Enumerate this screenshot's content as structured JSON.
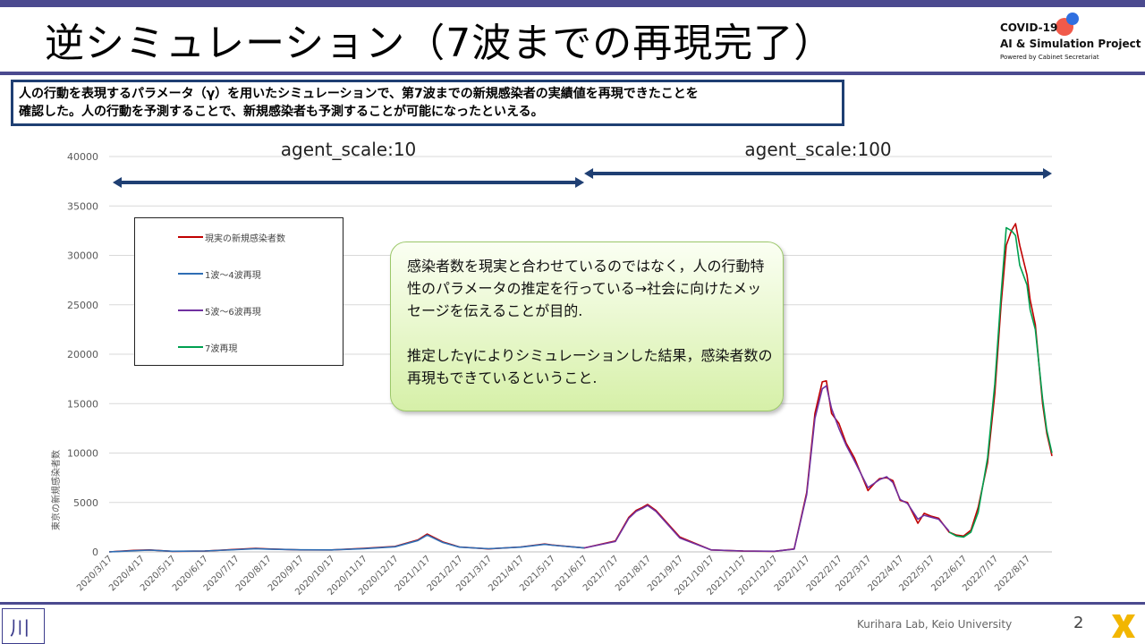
{
  "header": {
    "title": "逆シミュレーション（7波までの再現完了）",
    "logo": {
      "line1": "COVID-19",
      "line2": "AI & Simulation Project",
      "line3": "Powered by Cabinet Secretariat"
    }
  },
  "summary": {
    "line1": "人の行動を表現するパラメータ（γ）を用いたシミュレーションで、第7波までの新規感染者の実績値を再現できたことを",
    "line2": "確認した。人の行動を予測することで、新規感染者も予測することが可能になったといえる。"
  },
  "callout": {
    "p1": "感染者数を現実と合わせているのではなく，人の行動特性のパラメータの推定を行っている→社会に向けたメッセージを伝えることが目的.",
    "p2": "推定したγによりシミュレーションした結果，感染者数の再現もできているということ."
  },
  "footer": {
    "lab": "Kurihara Lab, Keio University",
    "page": "2",
    "logo_text": "川"
  },
  "colors": {
    "theme": "#4b4a8f",
    "box_border": "#1f3f73",
    "arrow": "#1f3f73",
    "callout_fill": "#e2f4c4"
  },
  "chart_data": {
    "type": "line",
    "ylabel": "東京の新規感染者数",
    "xlabel": "",
    "ylim": [
      0,
      40000
    ],
    "yticks": [
      0,
      5000,
      10000,
      15000,
      20000,
      25000,
      30000,
      35000,
      40000
    ],
    "xlim": [
      "2020-03-17",
      "2022-09-10"
    ],
    "xtick_labels": [
      "2020/3/17",
      "2020/4/17",
      "2020/5/17",
      "2020/6/17",
      "2020/7/17",
      "2020/8/17",
      "2020/9/17",
      "2020/10/17",
      "2020/11/17",
      "2020/12/17",
      "2021/1/17",
      "2021/2/17",
      "2021/3/17",
      "2021/4/17",
      "2021/5/17",
      "2021/6/17",
      "2021/7/17",
      "2021/8/17",
      "2021/9/17",
      "2021/10/17",
      "2021/11/17",
      "2021/12/17",
      "2022/1/17",
      "2022/2/17",
      "2022/3/17",
      "2022/4/17",
      "2022/5/17",
      "2022/6/17",
      "2022/7/17",
      "2022/8/17"
    ],
    "grid": "horizontal",
    "legend_position": "upper-left",
    "annotations": [
      {
        "text": "agent_scale:10",
        "from": "2020-03-17",
        "to": "2021-06-17"
      },
      {
        "text": "agent_scale:100",
        "from": "2021-06-17",
        "to": "2022-09-10"
      }
    ],
    "series": [
      {
        "name": "現実の新規感染者数",
        "color": "#c00000",
        "x": [
          "2020-03-17",
          "2020-04-10",
          "2020-04-25",
          "2020-05-17",
          "2020-06-17",
          "2020-07-17",
          "2020-08-05",
          "2020-08-17",
          "2020-09-17",
          "2020-10-17",
          "2020-11-17",
          "2020-12-17",
          "2021-01-08",
          "2021-01-17",
          "2021-02-01",
          "2021-02-17",
          "2021-03-17",
          "2021-04-17",
          "2021-05-10",
          "2021-05-17",
          "2021-06-17",
          "2021-07-17",
          "2021-07-30",
          "2021-08-06",
          "2021-08-12",
          "2021-08-17",
          "2021-08-25",
          "2021-09-17",
          "2021-10-17",
          "2021-11-17",
          "2021-12-17",
          "2022-01-05",
          "2022-01-17",
          "2022-01-25",
          "2022-02-01",
          "2022-02-05",
          "2022-02-10",
          "2022-02-17",
          "2022-02-24",
          "2022-03-04",
          "2022-03-17",
          "2022-03-24",
          "2022-03-28",
          "2022-04-04",
          "2022-04-10",
          "2022-04-17",
          "2022-04-24",
          "2022-05-04",
          "2022-05-10",
          "2022-05-17",
          "2022-05-24",
          "2022-06-03",
          "2022-06-10",
          "2022-06-17",
          "2022-06-24",
          "2022-07-01",
          "2022-07-10",
          "2022-07-17",
          "2022-07-23",
          "2022-07-28",
          "2022-08-02",
          "2022-08-06",
          "2022-08-10",
          "2022-08-17",
          "2022-08-20",
          "2022-08-25",
          "2022-09-01",
          "2022-09-05",
          "2022-09-10"
        ],
        "values": [
          0,
          150,
          200,
          50,
          80,
          250,
          350,
          300,
          200,
          200,
          350,
          550,
          1200,
          1800,
          1000,
          500,
          300,
          500,
          800,
          700,
          400,
          1100,
          3500,
          4200,
          4500,
          4800,
          4200,
          1500,
          200,
          80,
          50,
          300,
          6000,
          14000,
          17200,
          17300,
          14000,
          13000,
          11000,
          9500,
          6200,
          7000,
          7400,
          7500,
          7200,
          5200,
          5000,
          2900,
          3900,
          3600,
          3400,
          2000,
          1700,
          1600,
          2200,
          4500,
          9000,
          16000,
          25000,
          31000,
          32500,
          33200,
          31000,
          28000,
          25500,
          23000,
          15000,
          12000,
          9700
        ]
      },
      {
        "name": "1波～4波再現",
        "color": "#2e6db4",
        "x": [
          "2020-03-17",
          "2020-04-10",
          "2020-04-25",
          "2020-05-17",
          "2020-06-17",
          "2020-07-17",
          "2020-08-05",
          "2020-08-17",
          "2020-09-17",
          "2020-10-17",
          "2020-11-17",
          "2020-12-17",
          "2021-01-08",
          "2021-01-17",
          "2021-02-01",
          "2021-02-17",
          "2021-03-17",
          "2021-04-17",
          "2021-05-10",
          "2021-05-17",
          "2021-06-17"
        ],
        "values": [
          0,
          120,
          180,
          60,
          90,
          230,
          330,
          280,
          210,
          200,
          330,
          520,
          1150,
          1700,
          950,
          480,
          320,
          480,
          760,
          680,
          400
        ]
      },
      {
        "name": "5波～6波再現",
        "color": "#7030a0",
        "x": [
          "2021-06-17",
          "2021-07-17",
          "2021-07-30",
          "2021-08-06",
          "2021-08-12",
          "2021-08-17",
          "2021-08-25",
          "2021-09-17",
          "2021-10-17",
          "2021-11-17",
          "2021-12-17",
          "2022-01-05",
          "2022-01-17",
          "2022-01-25",
          "2022-02-01",
          "2022-02-05",
          "2022-02-10",
          "2022-02-17",
          "2022-02-24",
          "2022-03-04",
          "2022-03-17",
          "2022-03-24",
          "2022-03-28",
          "2022-04-04",
          "2022-04-10",
          "2022-04-17",
          "2022-04-24",
          "2022-05-04",
          "2022-05-10",
          "2022-05-17",
          "2022-05-24",
          "2022-06-03"
        ],
        "values": [
          400,
          1050,
          3400,
          4100,
          4400,
          4700,
          4100,
          1400,
          200,
          90,
          60,
          280,
          5800,
          13500,
          16500,
          16800,
          14500,
          12500,
          10800,
          9200,
          6500,
          7000,
          7300,
          7600,
          7000,
          5300,
          4900,
          3300,
          3700,
          3500,
          3300,
          2100
        ]
      },
      {
        "name": "7波再現",
        "color": "#00a050",
        "x": [
          "2022-06-03",
          "2022-06-10",
          "2022-06-17",
          "2022-06-24",
          "2022-07-01",
          "2022-07-10",
          "2022-07-17",
          "2022-07-23",
          "2022-07-28",
          "2022-08-02",
          "2022-08-06",
          "2022-08-10",
          "2022-08-17",
          "2022-08-20",
          "2022-08-25",
          "2022-09-01",
          "2022-09-05",
          "2022-09-10"
        ],
        "values": [
          2000,
          1600,
          1500,
          2000,
          4000,
          9500,
          17000,
          26000,
          32800,
          32500,
          32000,
          29000,
          27000,
          24500,
          22500,
          15500,
          12300,
          10000
        ]
      }
    ]
  }
}
